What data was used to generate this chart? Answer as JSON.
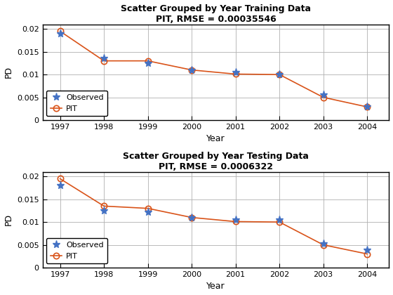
{
  "train": {
    "title_line1": "Scatter Grouped by Year Training Data",
    "title_line2": "PIT, RMSE = 0.00035546",
    "years": [
      1997,
      1998,
      1999,
      2000,
      2001,
      2002,
      2003,
      2004
    ],
    "observed": [
      0.019,
      0.0135,
      0.0125,
      0.011,
      0.0105,
      0.01,
      0.0055,
      0.003
    ],
    "pit": [
      0.0195,
      0.013,
      0.013,
      0.011,
      0.0101,
      0.01,
      0.005,
      0.0029
    ]
  },
  "test": {
    "title_line1": "Scatter Grouped by Year Testing Data",
    "title_line2": "PIT, RMSE = 0.0006322",
    "years": [
      1997,
      1998,
      1999,
      2000,
      2001,
      2002,
      2003,
      2004
    ],
    "observed": [
      0.018,
      0.0125,
      0.0122,
      0.011,
      0.0105,
      0.0105,
      0.0052,
      0.0038
    ],
    "pit": [
      0.0195,
      0.0135,
      0.013,
      0.011,
      0.0101,
      0.01,
      0.005,
      0.003
    ]
  },
  "xlabel": "Year",
  "ylabel": "PD",
  "ylim": [
    0,
    0.021
  ],
  "yticks": [
    0,
    0.005,
    0.01,
    0.015,
    0.02
  ],
  "observed_color": "#4472C4",
  "pit_color": "#D95319",
  "legend_labels": [
    "Observed",
    "PIT"
  ],
  "background_color": "#ffffff",
  "grid_color": "#b0b0b0",
  "spine_color": "#000000",
  "tick_color": "#000000",
  "text_color": "#000000"
}
